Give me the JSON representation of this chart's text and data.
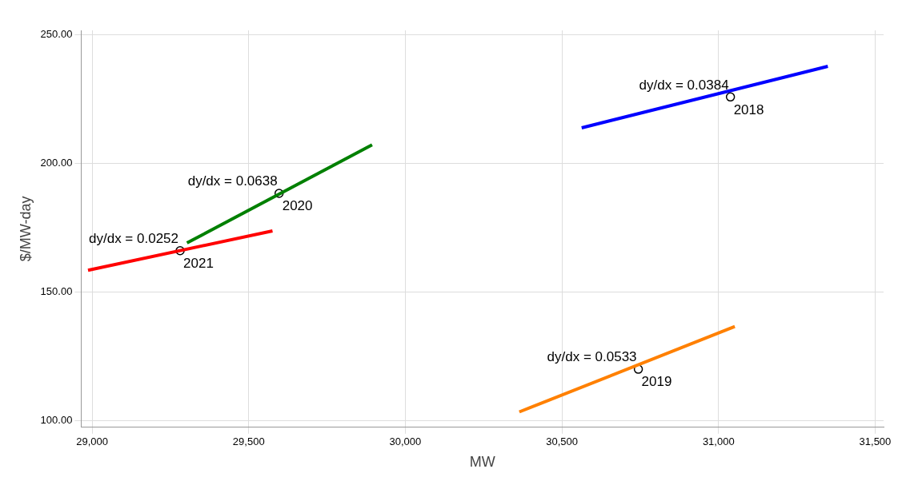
{
  "chart_data": {
    "type": "line",
    "xlabel": "MW",
    "ylabel": "$/MW-day",
    "xlim": [
      28965,
      31527
    ],
    "ylim": [
      97.3,
      251.7
    ],
    "xticks": [
      {
        "value": 29000,
        "label": "29,000"
      },
      {
        "value": 29500,
        "label": "29,500"
      },
      {
        "value": 30000,
        "label": "30,000"
      },
      {
        "value": 30500,
        "label": "30,500"
      },
      {
        "value": 31000,
        "label": "31,000"
      },
      {
        "value": 31500,
        "label": "31,500"
      }
    ],
    "yticks": [
      {
        "value": 100,
        "label": "100.00"
      },
      {
        "value": 150,
        "label": "150.00"
      },
      {
        "value": 200,
        "label": "200.00"
      },
      {
        "value": 250,
        "label": "250.00"
      }
    ],
    "grid": true,
    "legend": false,
    "series": [
      {
        "color": "#0000ff",
        "x": [
          30563,
          31349
        ],
        "values": [
          213.8,
          237.7
        ]
      },
      {
        "color": "#ff8000",
        "x": [
          30364,
          31052
        ],
        "values": [
          103.3,
          136.5
        ]
      },
      {
        "color": "#008000",
        "x": [
          29303,
          29894
        ],
        "values": [
          169.0,
          207.2
        ]
      },
      {
        "color": "#ff0000",
        "x": [
          28987,
          29576
        ],
        "values": [
          158.4,
          173.7
        ]
      },
      {
        "type": "scatter",
        "marker": "circle",
        "color": "#000000",
        "x": [
          31038,
          30744,
          29597,
          29281
        ],
        "values": [
          225.8,
          119.9,
          188.3,
          166.0
        ]
      }
    ],
    "annotations": [
      {
        "text": "dy/dx = 0.0384",
        "x": 31038,
        "y": 225.8
      },
      {
        "text": "2018",
        "x": 31038,
        "y": 225.8
      },
      {
        "text": "dy/dx = 0.0533",
        "x": 30744,
        "y": 119.9
      },
      {
        "text": "2019",
        "x": 30744,
        "y": 119.9
      },
      {
        "text": "dy/dx = 0.0638",
        "x": 29597,
        "y": 188.3
      },
      {
        "text": "2020",
        "x": 29597,
        "y": 188.3
      },
      {
        "text": "dy/dx = 0.0252",
        "x": 29281,
        "y": 166.0
      },
      {
        "text": "2021",
        "x": 29281,
        "y": 166.0
      }
    ]
  }
}
